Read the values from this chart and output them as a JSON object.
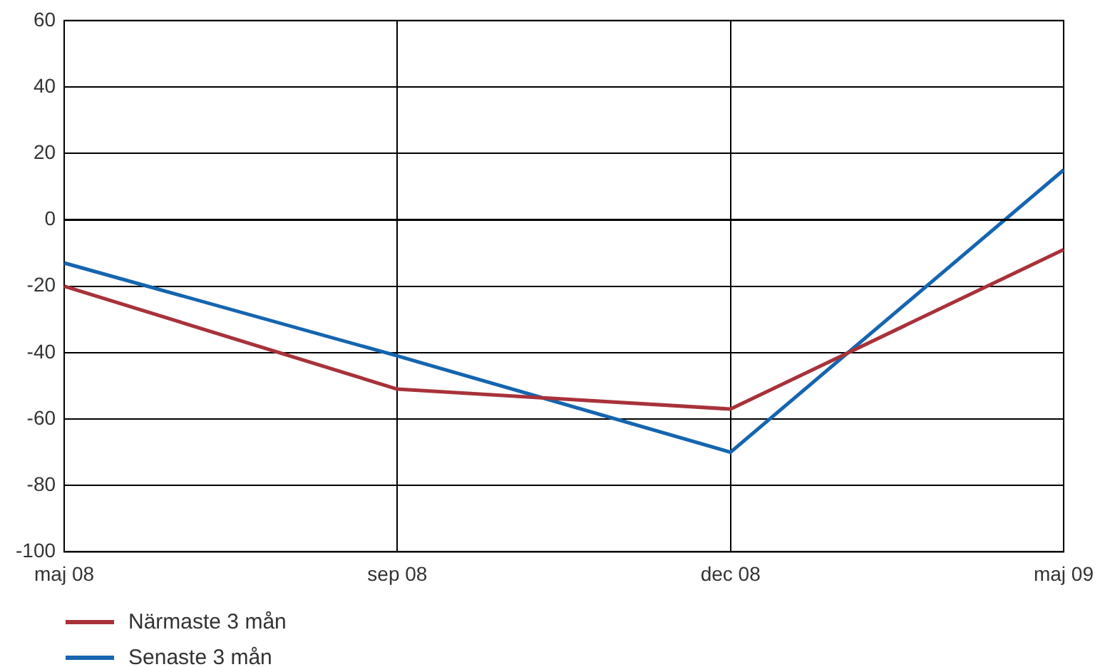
{
  "chart_data": {
    "type": "line",
    "categories": [
      "maj 08",
      "sep 08",
      "dec 08",
      "maj 09"
    ],
    "series": [
      {
        "name": "Närmaste 3 mån",
        "color": "#a8323a",
        "values": [
          -20,
          -51,
          -57,
          -9
        ]
      },
      {
        "name": "Senaste 3 mån",
        "color": "#1565b0",
        "values": [
          -13,
          -41,
          -70,
          15
        ]
      }
    ],
    "ylim": [
      -100,
      60
    ],
    "yticks": [
      -100,
      -80,
      -60,
      -40,
      -20,
      0,
      20,
      40,
      60
    ],
    "grid": true,
    "legend": "bottom left",
    "marker": "none",
    "line_style": "solid",
    "ref_lines": [
      {
        "axis": "y",
        "value": 0,
        "color": "#000000"
      }
    ]
  }
}
